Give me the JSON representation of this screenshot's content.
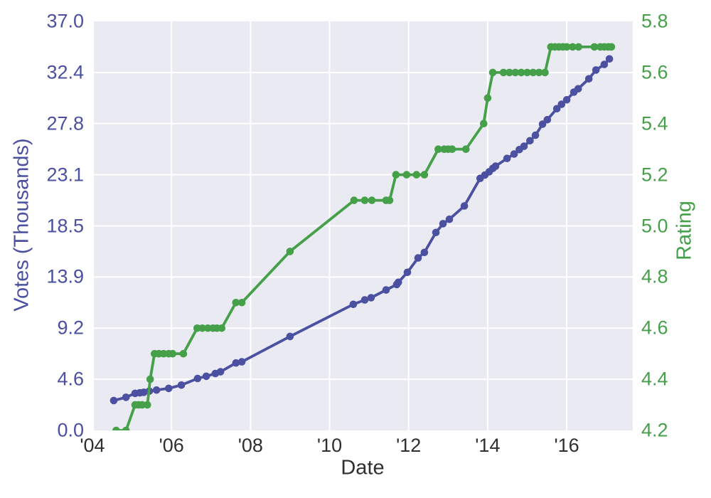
{
  "chart_data": {
    "type": "line",
    "title": "",
    "xlabel": "Date",
    "ylabel_left": "Votes (Thousands)",
    "ylabel_right": "Rating",
    "grid": true,
    "legend": false,
    "x_range": [
      2004.036,
      2017.672
    ],
    "x_ticks": [
      {
        "value": 2004,
        "label": "'04"
      },
      {
        "value": 2006,
        "label": "'06"
      },
      {
        "value": 2008,
        "label": "'08"
      },
      {
        "value": 2010,
        "label": "'10"
      },
      {
        "value": 2012,
        "label": "'12"
      },
      {
        "value": 2014,
        "label": "'14"
      },
      {
        "value": 2016,
        "label": "'16"
      }
    ],
    "y_left": {
      "min": 0.0,
      "max": 37.0,
      "ticks": [
        {
          "value": 0.0,
          "label": "0.0"
        },
        {
          "value": 4.625,
          "label": "4.6"
        },
        {
          "value": 9.25,
          "label": "9.2"
        },
        {
          "value": 13.875,
          "label": "13.9"
        },
        {
          "value": 18.5,
          "label": "18.5"
        },
        {
          "value": 23.125,
          "label": "23.1"
        },
        {
          "value": 27.75,
          "label": "27.8"
        },
        {
          "value": 32.375,
          "label": "32.4"
        },
        {
          "value": 37.0,
          "label": "37.0"
        }
      ]
    },
    "y_right": {
      "min": 4.2,
      "max": 5.8,
      "ticks": [
        {
          "value": 4.2,
          "label": "4.2"
        },
        {
          "value": 4.4,
          "label": "4.4"
        },
        {
          "value": 4.6,
          "label": "4.6"
        },
        {
          "value": 4.8,
          "label": "4.8"
        },
        {
          "value": 5.0,
          "label": "5.0"
        },
        {
          "value": 5.2,
          "label": "5.2"
        },
        {
          "value": 5.4,
          "label": "5.4"
        },
        {
          "value": 5.6,
          "label": "5.6"
        },
        {
          "value": 5.8,
          "label": "5.8"
        }
      ]
    },
    "colors": {
      "votes": "#4b50a0",
      "rating": "#45a049",
      "x_tick": "#2f2f2f",
      "plot_bg": "#eaeaf2",
      "grid": "#ffffff",
      "figure_bg": "#ffffff"
    },
    "series": [
      {
        "name": "Votes (Thousands)",
        "axis": "left",
        "color": "#4b50a0",
        "x": [
          2004.54,
          2004.85,
          2005.08,
          2005.2,
          2005.3,
          2005.44,
          2005.62,
          2005.93,
          2006.25,
          2006.66,
          2006.88,
          2007.11,
          2007.24,
          2007.63,
          2007.78,
          2009.0,
          2010.6,
          2010.89,
          2011.05,
          2011.43,
          2011.7,
          2011.74,
          2011.97,
          2012.24,
          2012.4,
          2012.69,
          2012.87,
          2013.03,
          2013.41,
          2013.81,
          2013.93,
          2014.04,
          2014.13,
          2014.2,
          2014.49,
          2014.67,
          2014.8,
          2014.92,
          2015.07,
          2015.21,
          2015.39,
          2015.51,
          2015.75,
          2015.87,
          2016.0,
          2016.18,
          2016.29,
          2016.56,
          2016.74,
          2016.95,
          2017.08
        ],
        "y": [
          2.7,
          3.0,
          3.35,
          3.4,
          3.45,
          3.55,
          3.65,
          3.8,
          4.1,
          4.7,
          4.9,
          5.15,
          5.3,
          6.1,
          6.2,
          8.5,
          11.4,
          11.8,
          12.0,
          12.7,
          13.2,
          13.4,
          14.3,
          15.6,
          16.1,
          17.9,
          18.7,
          19.1,
          20.3,
          22.8,
          23.1,
          23.4,
          23.7,
          23.9,
          24.6,
          25.0,
          25.4,
          25.7,
          26.2,
          26.7,
          27.7,
          28.1,
          29.1,
          29.5,
          29.9,
          30.6,
          30.9,
          31.8,
          32.6,
          33.1,
          33.6
        ]
      },
      {
        "name": "Rating",
        "axis": "right",
        "color": "#45a049",
        "x": [
          2004.6,
          2004.85,
          2005.08,
          2005.17,
          2005.26,
          2005.39,
          2005.46,
          2005.57,
          2005.68,
          2005.8,
          2005.93,
          2006.03,
          2006.3,
          2006.65,
          2006.78,
          2006.92,
          2007.05,
          2007.15,
          2007.27,
          2007.63,
          2007.78,
          2009.0,
          2010.62,
          2010.89,
          2011.07,
          2011.43,
          2011.52,
          2011.68,
          2011.95,
          2012.2,
          2012.4,
          2012.75,
          2012.9,
          2013.0,
          2013.1,
          2013.45,
          2013.9,
          2014.0,
          2014.13,
          2014.4,
          2014.55,
          2014.7,
          2014.85,
          2015.0,
          2015.15,
          2015.3,
          2015.45,
          2015.6,
          2015.7,
          2015.8,
          2015.9,
          2016.0,
          2016.15,
          2016.3,
          2016.7,
          2016.85,
          2016.95,
          2017.05,
          2017.13
        ],
        "y": [
          4.2,
          4.2,
          4.3,
          4.3,
          4.3,
          4.3,
          4.4,
          4.5,
          4.5,
          4.5,
          4.5,
          4.5,
          4.5,
          4.6,
          4.6,
          4.6,
          4.6,
          4.6,
          4.6,
          4.7,
          4.7,
          4.9,
          5.1,
          5.1,
          5.1,
          5.1,
          5.1,
          5.2,
          5.2,
          5.2,
          5.2,
          5.3,
          5.3,
          5.3,
          5.3,
          5.3,
          5.4,
          5.5,
          5.6,
          5.6,
          5.6,
          5.6,
          5.6,
          5.6,
          5.6,
          5.6,
          5.6,
          5.7,
          5.7,
          5.7,
          5.7,
          5.7,
          5.7,
          5.7,
          5.7,
          5.7,
          5.7,
          5.7,
          5.7
        ]
      }
    ]
  }
}
